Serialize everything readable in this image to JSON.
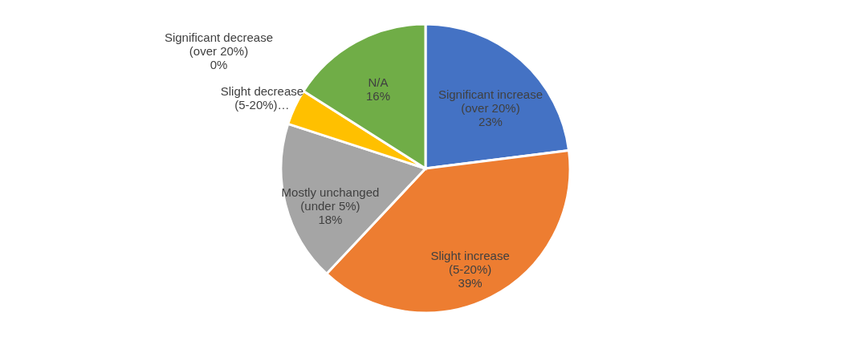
{
  "chart_data": {
    "type": "pie",
    "categories": [
      "Significant increase (over 20%)",
      "Slight increase (5-20%)",
      "Mostly unchanged (under 5%)",
      "Slight decrease (5-20%)…",
      "Significant decrease (over 20%)",
      "N/A"
    ],
    "values": [
      23,
      39,
      18,
      4,
      0,
      16
    ],
    "value_labels": [
      "23%",
      "39%",
      "18%",
      null,
      "0%",
      "16%"
    ],
    "colors": [
      "#4472c4",
      "#ed7d31",
      "#a5a5a5",
      "#ffc000",
      "#5b9bd5",
      "#70ad47"
    ],
    "legend": false
  }
}
